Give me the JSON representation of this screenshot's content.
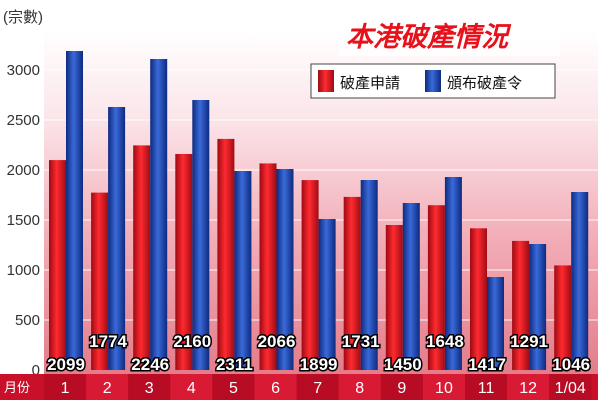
{
  "chart_data": {
    "type": "bar",
    "title": "本港破產情況",
    "unit_label": "(宗數)",
    "xlabel": "月份",
    "categories": [
      "1",
      "2",
      "3",
      "4",
      "5",
      "6",
      "7",
      "8",
      "9",
      "10",
      "11",
      "12",
      "1/04"
    ],
    "series": [
      {
        "name": "破產申請",
        "color": "#d8101c",
        "values": [
          2099,
          1774,
          2246,
          2160,
          2311,
          2066,
          1899,
          1731,
          1450,
          1648,
          1417,
          1291,
          1046
        ],
        "labels": [
          "2099",
          "1774",
          "2246",
          "2160",
          "2311",
          "2066",
          "1899",
          "1731",
          "1450",
          "1648",
          "1417",
          "1291",
          "1046"
        ]
      },
      {
        "name": "頒布破產令",
        "color": "#1a3fa8",
        "values": [
          3190,
          2630,
          3110,
          2700,
          1990,
          2010,
          1510,
          1900,
          1670,
          1930,
          930,
          1260,
          1780
        ]
      }
    ],
    "ylim": [
      0,
      3400
    ],
    "yticks": [
      "0",
      "500",
      "1000",
      "1500",
      "2000",
      "2500",
      "3000"
    ],
    "legend_position": "top-right",
    "grid": true
  }
}
